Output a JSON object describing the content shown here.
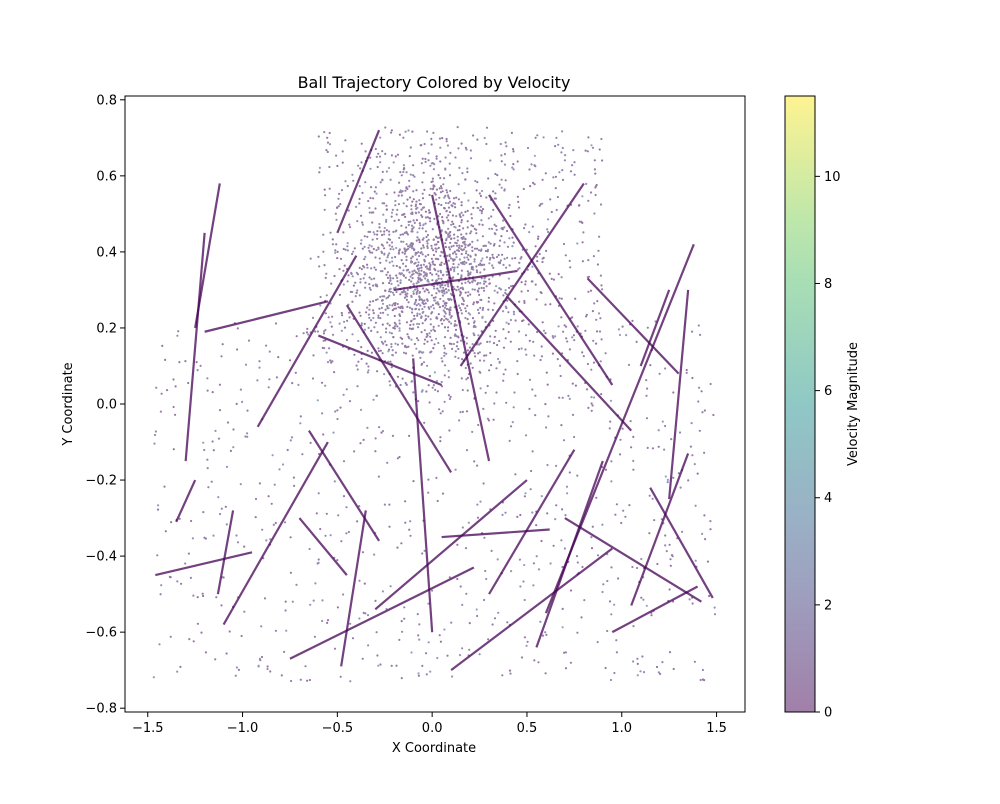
{
  "chart_data": {
    "type": "scatter",
    "title": "Ball Trajectory Colored by Velocity",
    "xlabel": "X Coordinate",
    "ylabel": "Y Coordinate",
    "xlim": [
      -1.62,
      1.65
    ],
    "ylim": [
      -0.81,
      0.81
    ],
    "x_ticks": [
      -1.5,
      -1.0,
      -0.5,
      0.0,
      0.5,
      1.0,
      1.5
    ],
    "x_tick_labels": [
      "−1.5",
      "−1.0",
      "−0.5",
      "0.0",
      "0.5",
      "1.0",
      "1.5"
    ],
    "y_ticks": [
      -0.8,
      -0.6,
      -0.4,
      -0.2,
      0.0,
      0.2,
      0.4,
      0.6,
      0.8
    ],
    "y_tick_labels": [
      "−0.8",
      "−0.6",
      "−0.4",
      "−0.2",
      "0.0",
      "0.2",
      "0.4",
      "0.6",
      "0.8"
    ],
    "grid": false,
    "colorbar": {
      "label": "Velocity Magnitude",
      "range": [
        0,
        11.5
      ],
      "ticks": [
        0,
        2,
        4,
        6,
        8,
        10
      ],
      "tick_labels": [
        "0",
        "2",
        "4",
        "6",
        "8",
        "10"
      ],
      "colormap": "viridis",
      "alpha": 0.5
    },
    "colors": {
      "low_velocity": "#440154",
      "high_velocity": "#fde725"
    },
    "distribution": {
      "dense_region_center": [
        0.0,
        0.35
      ],
      "dense_region_x_range": [
        -0.65,
        0.9
      ],
      "dense_region_y_range": [
        0.1,
        0.73
      ],
      "overall_x_range": [
        -1.47,
        1.5
      ],
      "overall_y_range": [
        -0.73,
        0.73
      ]
    },
    "segments": [
      {
        "x": [
          -1.46,
          -0.95
        ],
        "y": [
          -0.45,
          -0.39
        ]
      },
      {
        "x": [
          -1.35,
          -1.25
        ],
        "y": [
          -0.31,
          -0.2
        ]
      },
      {
        "x": [
          -1.3,
          -1.2
        ],
        "y": [
          -0.15,
          0.45
        ]
      },
      {
        "x": [
          -1.25,
          -1.12
        ],
        "y": [
          0.2,
          0.58
        ]
      },
      {
        "x": [
          -1.2,
          -0.55
        ],
        "y": [
          0.19,
          0.27
        ]
      },
      {
        "x": [
          -1.13,
          -1.05
        ],
        "y": [
          -0.5,
          -0.28
        ]
      },
      {
        "x": [
          -1.1,
          -0.55
        ],
        "y": [
          -0.58,
          -0.1
        ]
      },
      {
        "x": [
          -0.92,
          -0.4
        ],
        "y": [
          -0.06,
          0.39
        ]
      },
      {
        "x": [
          -0.75,
          0.22
        ],
        "y": [
          -0.67,
          -0.43
        ]
      },
      {
        "x": [
          -0.7,
          -0.45
        ],
        "y": [
          -0.3,
          -0.45
        ]
      },
      {
        "x": [
          -0.65,
          -0.28
        ],
        "y": [
          -0.07,
          -0.36
        ]
      },
      {
        "x": [
          -0.6,
          0.05
        ],
        "y": [
          0.18,
          0.05
        ]
      },
      {
        "x": [
          -0.5,
          -0.28
        ],
        "y": [
          0.45,
          0.72
        ]
      },
      {
        "x": [
          -0.45,
          0.1
        ],
        "y": [
          0.26,
          -0.18
        ]
      },
      {
        "x": [
          -0.35,
          -0.48
        ],
        "y": [
          -0.28,
          -0.69
        ]
      },
      {
        "x": [
          -0.3,
          0.5
        ],
        "y": [
          -0.54,
          -0.2
        ]
      },
      {
        "x": [
          -0.2,
          0.45
        ],
        "y": [
          0.3,
          0.35
        ]
      },
      {
        "x": [
          -0.1,
          0.0
        ],
        "y": [
          0.12,
          -0.6
        ]
      },
      {
        "x": [
          0.0,
          0.3
        ],
        "y": [
          0.55,
          -0.15
        ]
      },
      {
        "x": [
          0.05,
          0.62
        ],
        "y": [
          -0.35,
          -0.33
        ]
      },
      {
        "x": [
          0.1,
          0.95
        ],
        "y": [
          -0.7,
          -0.38
        ]
      },
      {
        "x": [
          0.15,
          0.8
        ],
        "y": [
          0.1,
          0.58
        ]
      },
      {
        "x": [
          0.3,
          0.95
        ],
        "y": [
          0.55,
          0.05
        ]
      },
      {
        "x": [
          0.4,
          1.05
        ],
        "y": [
          0.28,
          -0.07
        ]
      },
      {
        "x": [
          0.55,
          0.9
        ],
        "y": [
          -0.64,
          -0.15
        ]
      },
      {
        "x": [
          0.6,
          1.38
        ],
        "y": [
          -0.55,
          0.42
        ]
      },
      {
        "x": [
          0.7,
          1.42
        ],
        "y": [
          -0.3,
          -0.52
        ]
      },
      {
        "x": [
          0.75,
          0.3
        ],
        "y": [
          -0.12,
          -0.5
        ]
      },
      {
        "x": [
          0.82,
          1.3
        ],
        "y": [
          0.33,
          0.08
        ]
      },
      {
        "x": [
          0.95,
          1.4
        ],
        "y": [
          -0.6,
          -0.48
        ]
      },
      {
        "x": [
          1.05,
          1.35
        ],
        "y": [
          -0.53,
          -0.13
        ]
      },
      {
        "x": [
          1.1,
          1.25
        ],
        "y": [
          0.1,
          0.3
        ]
      },
      {
        "x": [
          1.15,
          1.48
        ],
        "y": [
          -0.22,
          -0.51
        ]
      },
      {
        "x": [
          1.25,
          1.35
        ],
        "y": [
          -0.25,
          0.3
        ]
      }
    ]
  }
}
